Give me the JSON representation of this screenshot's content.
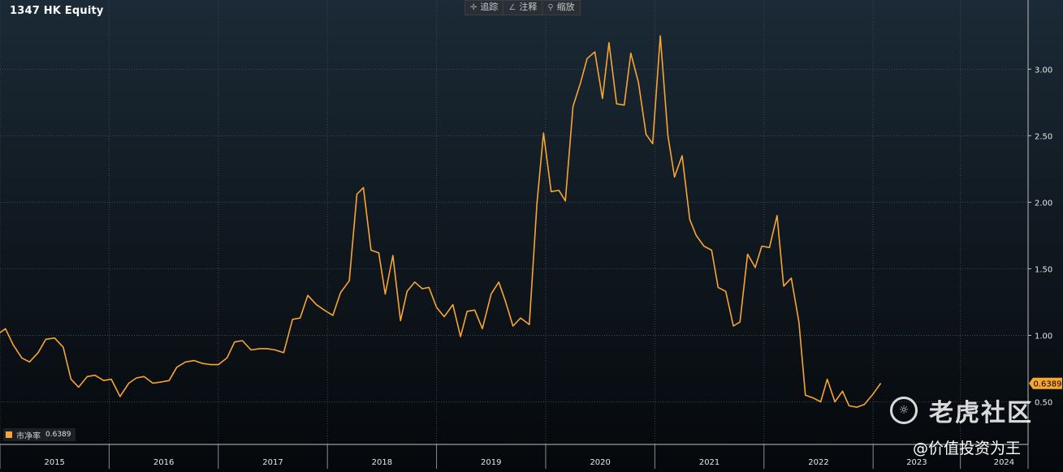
{
  "header": {
    "title": "1347 HK Equity"
  },
  "toolbar": {
    "items": [
      {
        "label": "追踪",
        "icon": "crosshair-icon"
      },
      {
        "label": "注释",
        "icon": "pencil-icon"
      },
      {
        "label": "缩放",
        "icon": "magnifier-icon"
      }
    ]
  },
  "legend": {
    "label": "市净率",
    "value": "0.6389",
    "color": "#f7a534"
  },
  "watermark": {
    "brand": "老虎社区",
    "handle": "@价值投资为王"
  },
  "colors": {
    "line": "#f7a534",
    "badge": "#f7a534",
    "grid": "#3c4a55",
    "axis_text": "#e6e6e6"
  },
  "chart_data": {
    "type": "line",
    "title": "1347 HK Equity",
    "xlabel": "",
    "ylabel": "",
    "series_name": "市净率",
    "last_value_label": "0.6389",
    "last_value": 0.6389,
    "x_range": [
      2015.0,
      2024.42
    ],
    "ylim": [
      0.18,
      3.52
    ],
    "y_ticks": [
      0.5,
      1.0,
      1.5,
      2.0,
      2.5,
      3.0
    ],
    "y_tick_labels": [
      "0.50",
      "1.00",
      "1.50",
      "2.00",
      "2.50",
      "3.00"
    ],
    "x_ticks": [
      {
        "label": "2015",
        "x": 2015.5
      },
      {
        "label": "2016",
        "x": 2016.5
      },
      {
        "label": "2017",
        "x": 2017.5
      },
      {
        "label": "2018",
        "x": 2018.5
      },
      {
        "label": "2019",
        "x": 2019.5
      },
      {
        "label": "2020",
        "x": 2020.5
      },
      {
        "label": "2021",
        "x": 2021.5
      },
      {
        "label": "2022",
        "x": 2022.5
      },
      {
        "label": "2023",
        "x": 2023.4
      },
      {
        "label": "2024",
        "x": 2024.2
      }
    ],
    "year_boundaries": [
      2015.0,
      2016.0,
      2017.0,
      2018.0,
      2019.0,
      2020.0,
      2021.0,
      2022.0,
      2023.0,
      2023.8,
      2024.42
    ],
    "grid": true,
    "points": [
      [
        2015.0,
        1.02
      ],
      [
        2015.05,
        1.05
      ],
      [
        2015.12,
        0.93
      ],
      [
        2015.2,
        0.83
      ],
      [
        2015.27,
        0.8
      ],
      [
        2015.35,
        0.87
      ],
      [
        2015.42,
        0.97
      ],
      [
        2015.5,
        0.98
      ],
      [
        2015.58,
        0.91
      ],
      [
        2015.65,
        0.67
      ],
      [
        2015.72,
        0.61
      ],
      [
        2015.8,
        0.69
      ],
      [
        2015.87,
        0.7
      ],
      [
        2015.95,
        0.66
      ],
      [
        2016.02,
        0.67
      ],
      [
        2016.1,
        0.54
      ],
      [
        2016.18,
        0.64
      ],
      [
        2016.25,
        0.68
      ],
      [
        2016.32,
        0.69
      ],
      [
        2016.4,
        0.64
      ],
      [
        2016.48,
        0.65
      ],
      [
        2016.55,
        0.66
      ],
      [
        2016.62,
        0.76
      ],
      [
        2016.7,
        0.8
      ],
      [
        2016.78,
        0.81
      ],
      [
        2016.85,
        0.79
      ],
      [
        2016.93,
        0.78
      ],
      [
        2017.0,
        0.78
      ],
      [
        2017.08,
        0.83
      ],
      [
        2017.15,
        0.95
      ],
      [
        2017.22,
        0.96
      ],
      [
        2017.3,
        0.89
      ],
      [
        2017.38,
        0.9
      ],
      [
        2017.45,
        0.9
      ],
      [
        2017.52,
        0.89
      ],
      [
        2017.6,
        0.87
      ],
      [
        2017.68,
        1.12
      ],
      [
        2017.75,
        1.13
      ],
      [
        2017.82,
        1.3
      ],
      [
        2017.9,
        1.23
      ],
      [
        2017.97,
        1.19
      ],
      [
        2018.05,
        1.15
      ],
      [
        2018.12,
        1.32
      ],
      [
        2018.2,
        1.41
      ],
      [
        2018.27,
        2.06
      ],
      [
        2018.33,
        2.11
      ],
      [
        2018.4,
        1.64
      ],
      [
        2018.47,
        1.62
      ],
      [
        2018.53,
        1.31
      ],
      [
        2018.6,
        1.6
      ],
      [
        2018.67,
        1.11
      ],
      [
        2018.73,
        1.33
      ],
      [
        2018.8,
        1.4
      ],
      [
        2018.87,
        1.35
      ],
      [
        2018.93,
        1.36
      ],
      [
        2019.0,
        1.21
      ],
      [
        2019.07,
        1.14
      ],
      [
        2019.15,
        1.23
      ],
      [
        2019.22,
        0.99
      ],
      [
        2019.28,
        1.18
      ],
      [
        2019.35,
        1.19
      ],
      [
        2019.42,
        1.05
      ],
      [
        2019.5,
        1.31
      ],
      [
        2019.57,
        1.4
      ],
      [
        2019.63,
        1.26
      ],
      [
        2019.7,
        1.07
      ],
      [
        2019.77,
        1.13
      ],
      [
        2019.85,
        1.08
      ],
      [
        2019.92,
        1.99
      ],
      [
        2019.98,
        2.52
      ],
      [
        2020.05,
        2.08
      ],
      [
        2020.12,
        2.09
      ],
      [
        2020.18,
        2.01
      ],
      [
        2020.25,
        2.72
      ],
      [
        2020.32,
        2.9
      ],
      [
        2020.38,
        3.08
      ],
      [
        2020.45,
        3.13
      ],
      [
        2020.52,
        2.78
      ],
      [
        2020.58,
        3.2
      ],
      [
        2020.65,
        2.74
      ],
      [
        2020.72,
        2.73
      ],
      [
        2020.78,
        3.12
      ],
      [
        2020.85,
        2.9
      ],
      [
        2020.92,
        2.51
      ],
      [
        2020.98,
        2.44
      ],
      [
        2021.05,
        3.25
      ],
      [
        2021.12,
        2.5
      ],
      [
        2021.18,
        2.19
      ],
      [
        2021.25,
        2.35
      ],
      [
        2021.32,
        1.87
      ],
      [
        2021.38,
        1.75
      ],
      [
        2021.45,
        1.67
      ],
      [
        2021.52,
        1.64
      ],
      [
        2021.58,
        1.36
      ],
      [
        2021.65,
        1.33
      ],
      [
        2021.72,
        1.07
      ],
      [
        2021.78,
        1.1
      ],
      [
        2021.85,
        1.61
      ],
      [
        2021.92,
        1.51
      ],
      [
        2021.98,
        1.67
      ],
      [
        2022.05,
        1.66
      ],
      [
        2022.12,
        1.9
      ],
      [
        2022.18,
        1.37
      ],
      [
        2022.25,
        1.43
      ],
      [
        2022.32,
        1.1
      ],
      [
        2022.38,
        0.55
      ],
      [
        2022.45,
        0.53
      ],
      [
        2022.52,
        0.5
      ],
      [
        2022.58,
        0.67
      ],
      [
        2022.65,
        0.5
      ],
      [
        2022.72,
        0.58
      ],
      [
        2022.78,
        0.47
      ],
      [
        2022.85,
        0.46
      ],
      [
        2022.92,
        0.48
      ],
      [
        2023.0,
        0.56
      ],
      [
        2023.07,
        0.64
      ]
    ]
  }
}
